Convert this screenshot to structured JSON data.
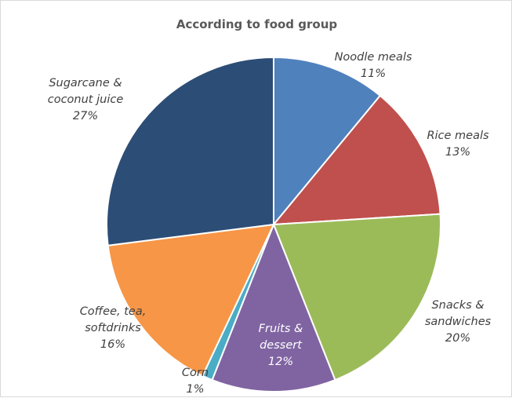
{
  "chart_data": {
    "type": "pie",
    "title": "According to food group",
    "start_angle_deg": 0,
    "direction": "clockwise",
    "slices": [
      {
        "label": "Noodle meals",
        "value": 11,
        "display": "11%",
        "color": "#4f81bd"
      },
      {
        "label": "Rice meals",
        "value": 13,
        "display": "13%",
        "color": "#c0504d"
      },
      {
        "label": "Snacks & sandwiches",
        "value": 20,
        "display": "20%",
        "color": "#9bbb59"
      },
      {
        "label": "Fruits & dessert",
        "value": 12,
        "display": "12%",
        "color": "#8064a2"
      },
      {
        "label": "Corn",
        "value": 1,
        "display": "1%",
        "color": "#4bacc6"
      },
      {
        "label": "Coffee, tea, softdrinks",
        "value": 16,
        "display": "16%",
        "color": "#f79646"
      },
      {
        "label": "Sugarcane & coconut juice",
        "value": 27,
        "display": "27%",
        "color": "#2c4d75"
      }
    ]
  }
}
